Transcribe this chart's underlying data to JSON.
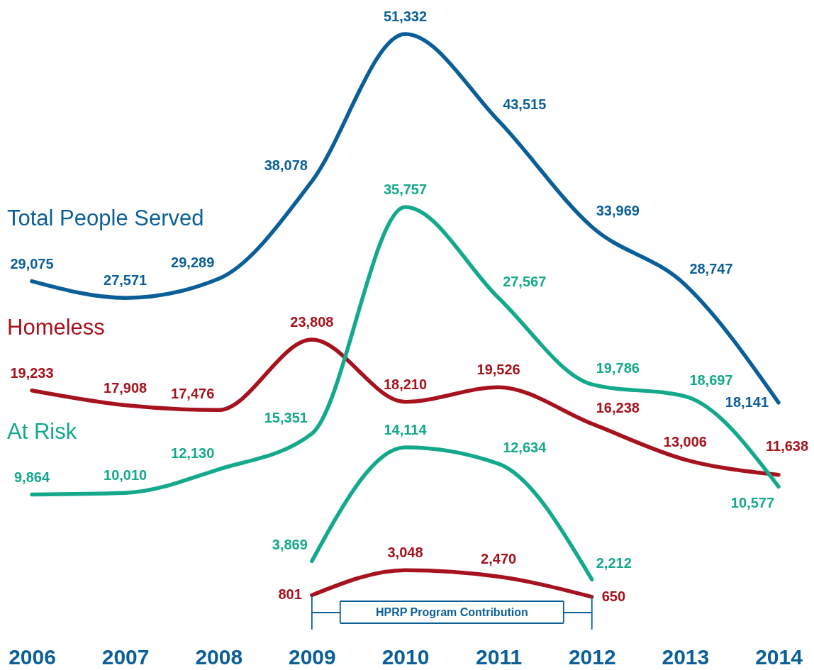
{
  "chart_data": {
    "type": "line",
    "x": [
      2006,
      2007,
      2008,
      2009,
      2010,
      2011,
      2012,
      2013,
      2014
    ],
    "xlim": [
      2006,
      2014
    ],
    "xticks": [
      2006,
      2007,
      2008,
      2009,
      2010,
      2011,
      2012,
      2013,
      2014
    ],
    "tick_labels": "x",
    "series": [
      {
        "name": "Total People Served",
        "color": "#0b5f99",
        "values": [
          29075,
          27571,
          29289,
          38078,
          51332,
          43515,
          33969,
          28747,
          18141
        ],
        "value_labels": [
          "29,075",
          "27,571",
          "29,289",
          "38,078",
          "51,332",
          "43,515",
          "33,969",
          "28,747",
          "18,141"
        ]
      },
      {
        "name": "Homeless",
        "color": "#a6121d",
        "values": [
          19233,
          17908,
          17476,
          23808,
          18210,
          19526,
          16238,
          13006,
          11638
        ],
        "value_labels": [
          "19,233",
          "17,908",
          "17,476",
          "23,808",
          "18,210",
          "19,526",
          "16,238",
          "13,006",
          "11,638"
        ]
      },
      {
        "name": "At Risk",
        "color": "#14a98c",
        "values": [
          9864,
          10010,
          12130,
          15351,
          35757,
          27567,
          19786,
          18697,
          10577
        ],
        "value_labels": [
          "9,864",
          "10,010",
          "12,130",
          "15,351",
          "35,757",
          "27,567",
          "19,786",
          "18,697",
          "10,577"
        ]
      },
      {
        "color": "#14a98c",
        "x": [
          2009,
          2010,
          2011,
          2012
        ],
        "values": [
          3869,
          14114,
          12634,
          2212
        ],
        "value_labels": [
          "3,869",
          "14,114",
          "12,634",
          "2,212"
        ]
      },
      {
        "color": "#a6121d",
        "x": [
          2009,
          2010,
          2011,
          2012
        ],
        "values": [
          801,
          3048,
          2470,
          650
        ],
        "value_labels": [
          "801",
          "3,048",
          "2,470",
          "650"
        ]
      }
    ],
    "annotations": [
      "HPRP Program Contribution"
    ]
  }
}
